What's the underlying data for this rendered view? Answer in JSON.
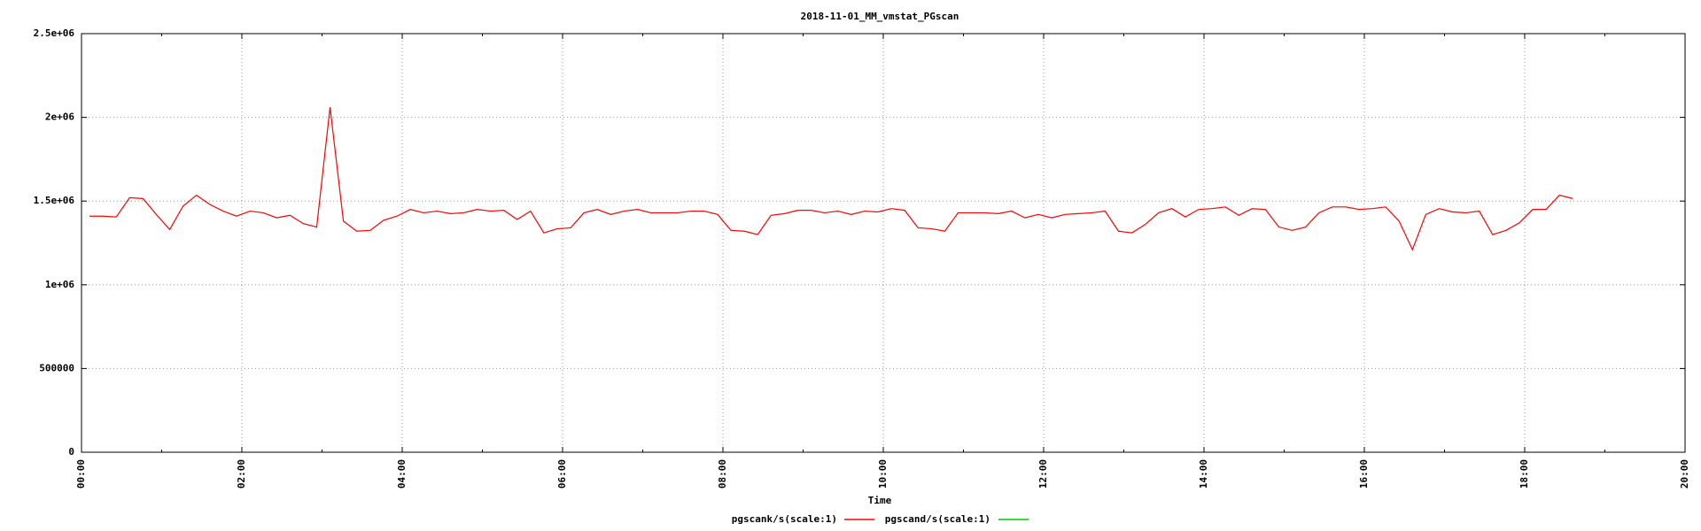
{
  "chart_data": {
    "type": "line",
    "title": "2018-11-01_MM_vmstat_PGscan",
    "x_label": "Time",
    "x": [
      6,
      16,
      26,
      36,
      46,
      56,
      66,
      76,
      86,
      96,
      106,
      116,
      126,
      136,
      146,
      156,
      166,
      176,
      186,
      196,
      206,
      216,
      226,
      236,
      246,
      256,
      266,
      276,
      286,
      296,
      306,
      316,
      326,
      336,
      346,
      356,
      366,
      376,
      386,
      396,
      406,
      416,
      426,
      436,
      446,
      456,
      466,
      476,
      486,
      496,
      506,
      516,
      526,
      536,
      546,
      556,
      566,
      576,
      586,
      596,
      606,
      616,
      626,
      636,
      646,
      656,
      666,
      676,
      686,
      696,
      706,
      716,
      726,
      736,
      746,
      756,
      766,
      776,
      786,
      796,
      806,
      816,
      826,
      836,
      846,
      856,
      866,
      876,
      886,
      896,
      906,
      916,
      926,
      936,
      946,
      956,
      966,
      976,
      986,
      996,
      1006,
      1016,
      1026,
      1036,
      1046,
      1056,
      1066,
      1076,
      1086,
      1096,
      1106,
      1116
    ],
    "series": [
      {
        "name": "pgscank/s(scale:1)",
        "color": "#ff0000",
        "values": [
          1410000,
          1410000,
          1405000,
          1520000,
          1515000,
          1420000,
          1330000,
          1470000,
          1535000,
          1480000,
          1440000,
          1410000,
          1440000,
          1430000,
          1400000,
          1415000,
          1365000,
          1345000,
          2060000,
          1380000,
          1320000,
          1325000,
          1385000,
          1410000,
          1450000,
          1430000,
          1440000,
          1425000,
          1430000,
          1450000,
          1440000,
          1445000,
          1390000,
          1440000,
          1310000,
          1335000,
          1340000,
          1430000,
          1450000,
          1420000,
          1440000,
          1450000,
          1430000,
          1430000,
          1430000,
          1440000,
          1440000,
          1420000,
          1325000,
          1320000,
          1300000,
          1415000,
          1425000,
          1445000,
          1445000,
          1430000,
          1440000,
          1420000,
          1440000,
          1435000,
          1455000,
          1445000,
          1340000,
          1335000,
          1320000,
          1430000,
          1430000,
          1430000,
          1425000,
          1440000,
          1400000,
          1420000,
          1400000,
          1420000,
          1425000,
          1430000,
          1440000,
          1320000,
          1310000,
          1360000,
          1430000,
          1455000,
          1405000,
          1450000,
          1455000,
          1465000,
          1415000,
          1455000,
          1450000,
          1345000,
          1325000,
          1345000,
          1430000,
          1465000,
          1465000,
          1450000,
          1455000,
          1465000,
          1380000,
          1210000,
          1420000,
          1455000,
          1435000,
          1430000,
          1440000,
          1300000,
          1325000,
          1370000,
          1450000,
          1450000,
          1535000,
          1515000
        ]
      },
      {
        "name": "pgscand/s(scale:1)",
        "color": "#00cc00",
        "values": [
          null,
          null,
          null,
          null,
          null,
          null,
          null,
          null,
          null,
          null,
          null,
          null,
          null,
          null,
          null,
          null,
          null,
          null,
          null,
          null,
          null,
          null,
          null,
          null,
          null,
          null,
          null,
          null,
          null,
          null,
          null,
          null,
          null,
          null,
          null,
          null,
          null,
          null,
          null,
          null,
          null,
          null,
          null,
          null,
          null,
          null,
          null,
          null,
          null,
          null,
          null,
          null,
          null,
          null,
          null,
          null,
          null,
          null,
          null,
          null,
          null,
          null,
          null,
          null,
          null,
          null,
          null,
          null,
          null,
          null,
          null,
          null,
          null,
          null,
          null,
          null,
          null,
          null,
          null,
          null,
          null,
          null,
          null,
          null,
          null,
          null,
          null,
          null,
          null,
          null,
          null,
          null,
          null,
          null,
          null,
          null,
          null,
          null,
          null,
          null,
          null,
          null,
          null,
          null,
          null,
          null,
          null,
          null,
          null,
          null,
          null,
          null
        ]
      }
    ],
    "xlim": [
      0,
      1200
    ],
    "xticks": [
      {
        "value": 0,
        "label": "00:00"
      },
      {
        "value": 120,
        "label": "02:00"
      },
      {
        "value": 240,
        "label": "04:00"
      },
      {
        "value": 360,
        "label": "06:00"
      },
      {
        "value": 480,
        "label": "08:00"
      },
      {
        "value": 600,
        "label": "10:00"
      },
      {
        "value": 720,
        "label": "12:00"
      },
      {
        "value": 840,
        "label": "14:00"
      },
      {
        "value": 960,
        "label": "16:00"
      },
      {
        "value": 1080,
        "label": "18:00"
      },
      {
        "value": 1200,
        "label": "20:00"
      }
    ],
    "ylim": [
      0,
      2500000
    ],
    "yticks": [
      0,
      500000,
      {
        "value": 1000000,
        "label": "1e+06"
      },
      {
        "value": 1500000,
        "label": "1.5e+06"
      },
      {
        "value": 2000000,
        "label": "2e+06"
      },
      {
        "value": 2500000,
        "label": "2.5e+06"
      }
    ],
    "grid": true,
    "legend": "bottom"
  }
}
